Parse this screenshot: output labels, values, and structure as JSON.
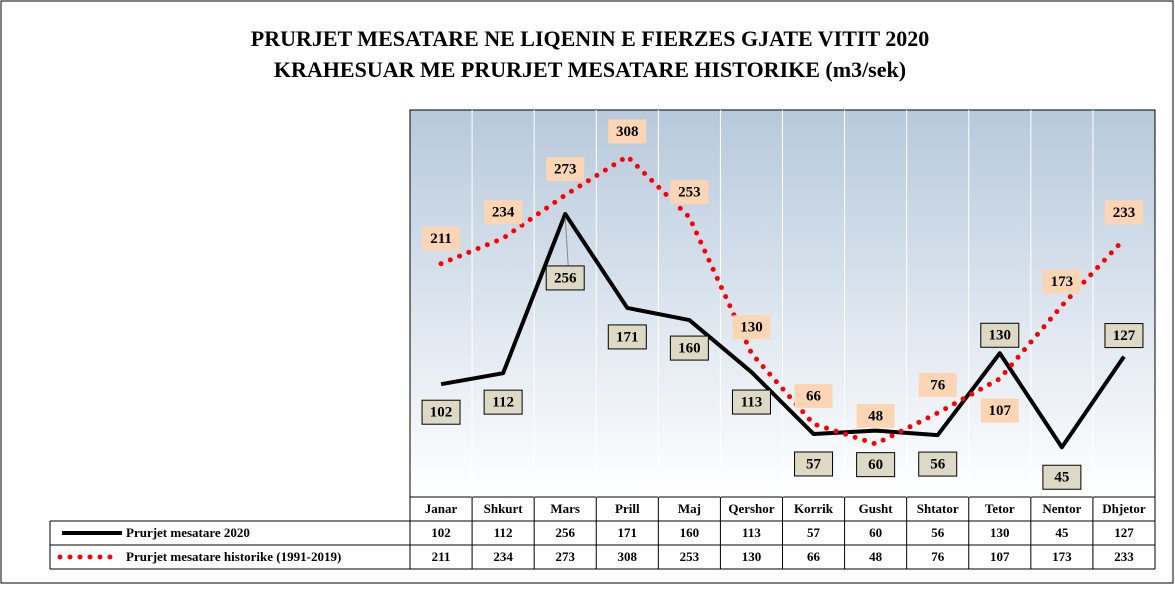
{
  "chart_data": {
    "type": "line",
    "title": "PRURJET MESATARE NE LIQENIN E FIERZES GJATE VITIT 2020",
    "subtitle": "KRAHESUAR ME PRURJET MESATARE HISTORIKE (m3/sek)",
    "categories": [
      "Janar",
      "Shkurt",
      "Mars",
      "Prill",
      "Maj",
      "Qershor",
      "Korrik",
      "Gusht",
      "Shtator",
      "Tetor",
      "Nentor",
      "Dhjetor"
    ],
    "series": [
      {
        "name": "Prurjet mesatare 2020",
        "color": "#000000",
        "values": [
          102,
          112,
          256,
          171,
          160,
          113,
          57,
          60,
          56,
          130,
          45,
          127
        ]
      },
      {
        "name": "Prurjet mesatare historike (1991-2019)",
        "color": "#ff0000",
        "values": [
          211,
          234,
          273,
          308,
          253,
          130,
          66,
          48,
          76,
          107,
          173,
          233
        ]
      }
    ],
    "ylim": [
      0,
      350
    ]
  }
}
